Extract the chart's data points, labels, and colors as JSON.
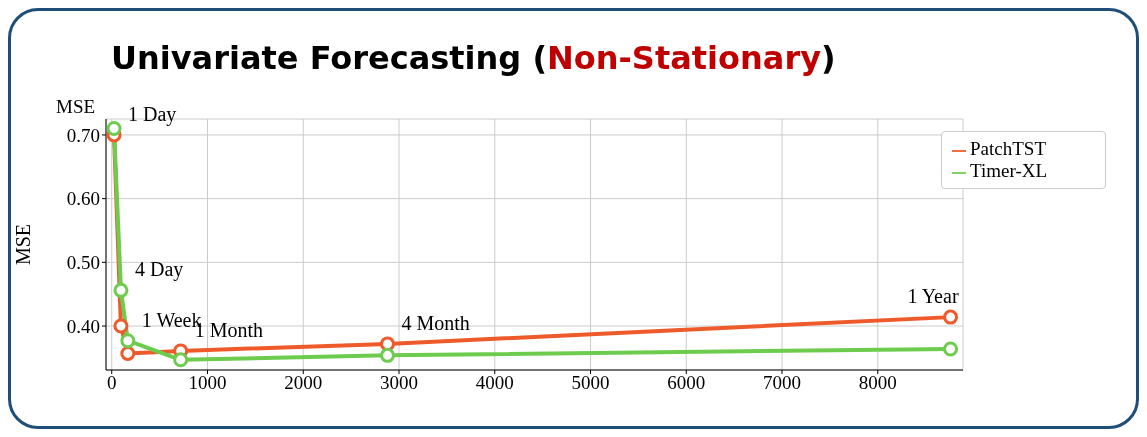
{
  "chart_data": {
    "type": "line",
    "title": "Univariate Forecasting (Non-Stationary)",
    "ylabel": "MSE",
    "x": [
      24,
      96,
      168,
      720,
      2880,
      8760
    ],
    "series": [
      {
        "name": "PatchTST",
        "color": "#ee5a2a",
        "values": [
          0.7,
          0.4,
          0.357,
          0.361,
          0.372,
          0.414
        ]
      },
      {
        "name": "Timer-XL",
        "color": "#6dcc4e",
        "values": [
          0.71,
          0.456,
          0.377,
          0.347,
          0.354,
          0.364
        ]
      }
    ],
    "xlim": [
      -60,
      8890
    ],
    "xticks": [
      0,
      1000,
      2000,
      3000,
      4000,
      5000,
      6000,
      7000,
      8000
    ],
    "ylim": [
      0.331,
      0.725
    ],
    "yticks": [
      {
        "value": 0.4,
        "label": "0.40"
      },
      {
        "value": 0.5,
        "label": "0.50"
      },
      {
        "value": 0.6,
        "label": "0.60"
      },
      {
        "value": 0.7,
        "label": "0.70"
      }
    ],
    "annotations": [
      "MSE",
      {
        "text": "1 Day",
        "x": 24,
        "y": 0.7
      },
      {
        "text": "4 Day",
        "x": 96,
        "y": 0.456
      },
      {
        "text": "1 Week",
        "x": 168,
        "y": 0.377
      },
      {
        "text": "1 Month",
        "x": 720,
        "y": 0.361
      },
      {
        "text": "4 Month",
        "x": 2880,
        "y": 0.372
      },
      {
        "text": "1 Year",
        "x": 8760,
        "y": 0.414
      }
    ],
    "grid": true,
    "legend": "top right",
    "marker": "circle",
    "line_style": "solid"
  }
}
